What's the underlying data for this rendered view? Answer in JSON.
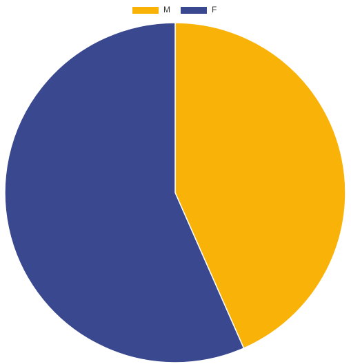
{
  "chart_data": {
    "type": "pie",
    "categories": [
      "M",
      "F"
    ],
    "values": [
      43.4,
      56.6
    ],
    "colors": [
      "#f9b207",
      "#3a4890"
    ]
  }
}
